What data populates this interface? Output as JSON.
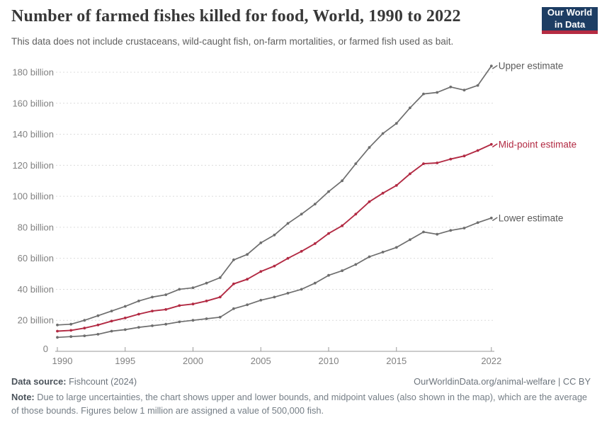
{
  "header": {
    "logo": {
      "line1": "Our World",
      "line2": "in Data"
    }
  },
  "chart_data": {
    "type": "line",
    "title": "Number of farmed fishes killed for food, World, 1990 to 2022",
    "subtitle": "This data does not include crustaceans, wild-caught fish, on-farm mortalities, or farmed fish used as bait.",
    "x": [
      1990,
      1991,
      1992,
      1993,
      1994,
      1995,
      1996,
      1997,
      1998,
      1999,
      2000,
      2001,
      2002,
      2003,
      2004,
      2005,
      2006,
      2007,
      2008,
      2009,
      2010,
      2011,
      2012,
      2013,
      2014,
      2015,
      2016,
      2017,
      2018,
      2019,
      2020,
      2021,
      2022
    ],
    "unit": "billion",
    "series": [
      {
        "name": "Upper estimate",
        "color": "#6e6e6e",
        "values": [
          17,
          17.5,
          20,
          23,
          26,
          29,
          32.5,
          35,
          36.5,
          40,
          41,
          44,
          47.5,
          59,
          62.5,
          70,
          75,
          82.5,
          88.5,
          95,
          103,
          110,
          121,
          131.5,
          140.5,
          147,
          157,
          166,
          167,
          170.5,
          168.5,
          171.5,
          184
        ]
      },
      {
        "name": "Mid-point estimate",
        "color": "#b22a43",
        "values": [
          13,
          13.5,
          15,
          17,
          19.5,
          21.5,
          24,
          26,
          27,
          29.5,
          30.5,
          32.5,
          35,
          43.5,
          46.5,
          51.5,
          55,
          60,
          64.5,
          69.5,
          76,
          81,
          88.5,
          96.5,
          102,
          107,
          114.5,
          121,
          121.5,
          124,
          126,
          129.5,
          133.5
        ]
      },
      {
        "name": "Lower estimate",
        "color": "#6e6e6e",
        "values": [
          9,
          9.5,
          10,
          11,
          13,
          14,
          15.5,
          16.5,
          17.5,
          19,
          20,
          21,
          22,
          27.5,
          30,
          33,
          35,
          37.5,
          40,
          44,
          49,
          52,
          56,
          61,
          64,
          67,
          72,
          77,
          75.5,
          78,
          79.5,
          83,
          86
        ]
      }
    ],
    "y_zero_label": "0",
    "y_ticks": [
      {
        "value": 20,
        "label": "20 billion"
      },
      {
        "value": 40,
        "label": "40 billion"
      },
      {
        "value": 60,
        "label": "60 billion"
      },
      {
        "value": 80,
        "label": "80 billion"
      },
      {
        "value": 100,
        "label": "100 billion"
      },
      {
        "value": 120,
        "label": "120 billion"
      },
      {
        "value": 140,
        "label": "140 billion"
      },
      {
        "value": 160,
        "label": "160 billion"
      },
      {
        "value": 180,
        "label": "180 billion"
      }
    ],
    "x_ticks": [
      1990,
      1995,
      2000,
      2005,
      2010,
      2015,
      2022
    ],
    "ylim": [
      0,
      190
    ],
    "xlabel": "",
    "ylabel": "",
    "grid": "dashed-horizontal",
    "legend_position": "right-of-line-ends",
    "colors": {
      "grid": "#dcdcdc",
      "axis": "#9a9a9a",
      "tick_text": "#818181",
      "gray_label": "#5b5b5b",
      "accent_red": "#b22a43"
    }
  },
  "footer": {
    "datasource_label": "Data source:",
    "datasource_value": " Fishcount (2024)",
    "link": "OurWorldinData.org/animal-welfare",
    "separator": " | ",
    "license": "CC BY",
    "note_label": "Note:",
    "note_text": " Due to large uncertainties, the chart shows upper and lower bounds, and midpoint values (also shown in the map), which are the average of those bounds. Figures below 1 million are assigned a value of 500,000 fish."
  }
}
